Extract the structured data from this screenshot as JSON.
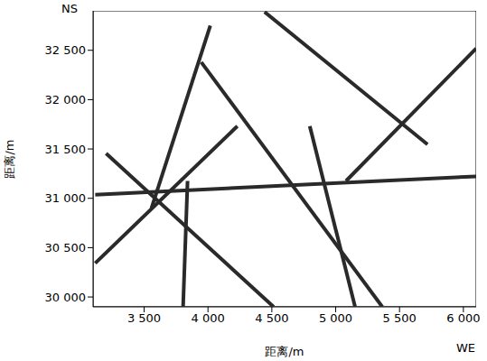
{
  "chart_data": {
    "type": "line",
    "x_label": "距离/m",
    "y_label": "距离/m",
    "annotations": [
      "NS",
      "WE"
    ],
    "xlim": [
      3100,
      6100
    ],
    "ylim": [
      29900,
      32900
    ],
    "xticks": [
      {
        "value": 3500,
        "label": "3 500"
      },
      {
        "value": 4000,
        "label": "4 000"
      },
      {
        "value": 4500,
        "label": "4 500"
      },
      {
        "value": 5000,
        "label": "5 000"
      },
      {
        "value": 5500,
        "label": "5 500"
      },
      {
        "value": 6000,
        "label": "6 000"
      }
    ],
    "yticks": [
      {
        "value": 30000,
        "label": "30 000"
      },
      {
        "value": 30500,
        "label": "30 500"
      },
      {
        "value": 31000,
        "label": "31 000"
      },
      {
        "value": 31500,
        "label": "31 500"
      },
      {
        "value": 32000,
        "label": "32 000"
      },
      {
        "value": 32500,
        "label": "32 500"
      }
    ],
    "color": "#2a2a2a",
    "series": [
      {
        "x": [
          3557,
          4018
        ],
        "y": [
          30898,
          32750
        ]
      },
      {
        "x": [
          3202,
          4514
        ],
        "y": [
          31454,
          29900
        ]
      },
      {
        "x": [
          3947,
          5365
        ],
        "y": [
          32380,
          29900
        ]
      },
      {
        "x": [
          5081,
          6100
        ],
        "y": [
          31176,
          32519
        ]
      },
      {
        "x": [
          3117,
          6100
        ],
        "y": [
          31037,
          31222
        ]
      },
      {
        "x": [
          4443,
          5719
        ],
        "y": [
          32889,
          31546
        ]
      },
      {
        "x": [
          3840,
          3805
        ],
        "y": [
          31176,
          29900
        ]
      },
      {
        "x": [
          4797,
          5152
        ],
        "y": [
          31732,
          29900
        ]
      },
      {
        "x": [
          3117,
          4230
        ],
        "y": [
          30343,
          31732
        ]
      }
    ]
  }
}
